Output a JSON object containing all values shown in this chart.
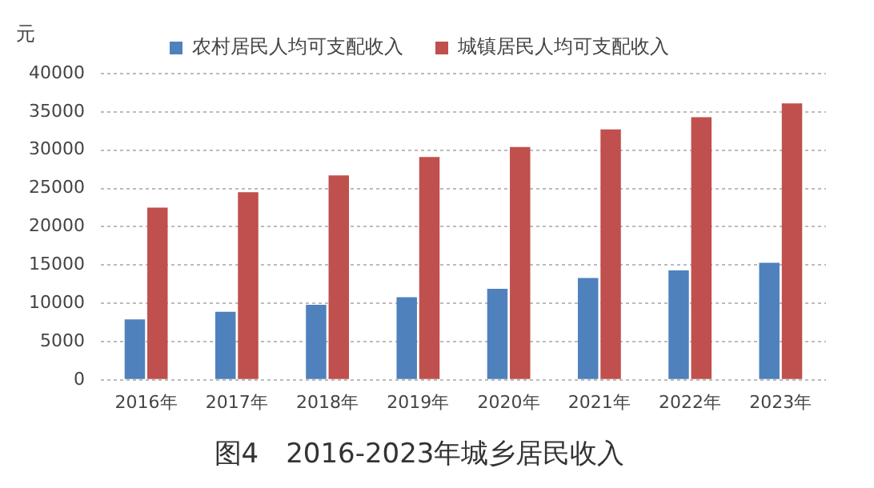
{
  "chart_data": {
    "type": "bar",
    "title": "图4　2016-2023年城乡居民收入",
    "ylabel": "元",
    "categories": [
      "2016年",
      "2017年",
      "2018年",
      "2019年",
      "2020年",
      "2021年",
      "2022年",
      "2023年"
    ],
    "series": [
      {
        "name": "农村居民人均可支配收入",
        "color": "#4f81bd",
        "values": [
          7900,
          8900,
          9800,
          10800,
          11900,
          13300,
          14300,
          15300
        ]
      },
      {
        "name": "城镇居民人均可支配收入",
        "color": "#c0504d",
        "values": [
          22500,
          24500,
          26700,
          29100,
          30400,
          32700,
          34300,
          36100
        ]
      }
    ],
    "ylim": [
      0,
      40000
    ],
    "yticks": [
      0,
      5000,
      10000,
      15000,
      20000,
      25000,
      30000,
      35000,
      40000
    ],
    "grid": "y",
    "legend": "top"
  }
}
